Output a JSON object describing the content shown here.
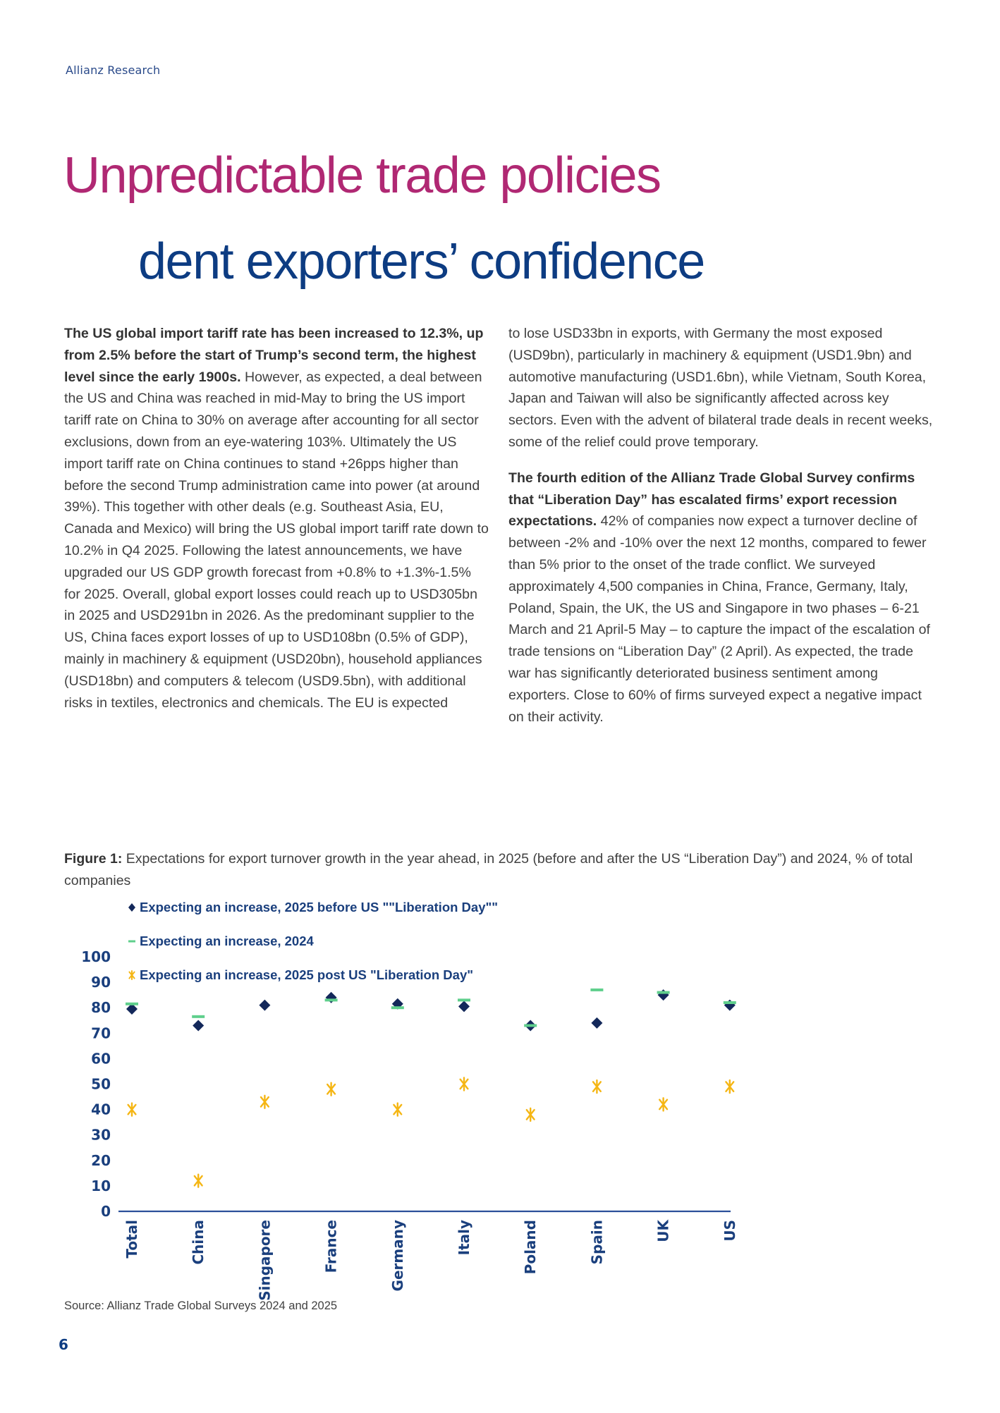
{
  "header": {
    "brand": "Allianz Research"
  },
  "title": {
    "line1": "Unpredictable trade policies",
    "line2": "dent exporters’ confidence"
  },
  "body": {
    "left_paragraph_bold": "The US global import tariff rate has been increased to 12.3%, up from 2.5% before the start of Trump’s second term, the highest level since the early 1900s.",
    "left_paragraph_rest": " However, as expected, a deal between the US and China was reached in mid-May to bring the US import tariff rate on China to 30% on average after accounting for all sector exclusions, down from an eye-watering 103%. Ultimately the US import tariff rate on China continues to stand +26pps higher than before the second Trump administration came into power (at around 39%). This together with other deals (e.g. Southeast Asia, EU, Canada and Mexico) will bring the US global import tariff rate down to 10.2% in Q4 2025. Following the latest announcements, we have upgraded our US GDP growth forecast from +0.8% to +1.3%-1.5% for 2025. Overall, global export losses could reach up to USD305bn in 2025 and USD291bn in 2026. As the predominant supplier to the US, China faces export losses of up to USD108bn (0.5% of GDP), mainly in machinery & equipment (USD20bn), household appliances (USD18bn) and computers & telecom (USD9.5bn), with additional risks in textiles, electronics and chemicals. The EU is expected",
    "right_paragraph1": "to lose USD33bn in exports, with Germany the most exposed (USD9bn), particularly in machinery & equipment (USD1.9bn) and automotive manufacturing (USD1.6bn), while Vietnam, South Korea, Japan and Taiwan will also be significantly affected across key sectors. Even with the advent of bilateral trade deals in recent weeks, some of the relief could prove temporary.",
    "right_paragraph2_bold": "The fourth edition of the Allianz Trade Global Survey confirms that “Liberation Day” has escalated firms’ export recession expectations.",
    "right_paragraph2_rest": " 42% of companies now expect a turnover decline of between -2% and -10% over the next 12 months, compared to fewer than 5% prior to the onset of the trade conflict. We surveyed approximately 4,500 companies in China, France, Germany, Italy, Poland, Spain, the UK, the US and Singapore in two phases – 6-21 March and 21 April-5 May – to capture the impact of the escalation of trade tensions on “Liberation Day” (2 April). As expected, the trade war has significantly deteriorated business sentiment among exporters. Close to 60% of firms surveyed expect a negative impact on their activity."
  },
  "figure": {
    "label": "Figure 1:",
    "caption": " Expectations for export turnover growth in the year ahead, in 2025 (before and after the US “Liberation Day”) and 2024, % of total companies",
    "source": "Source: Allianz Trade Global Surveys 2024 and 2025"
  },
  "page_number": "6",
  "colors": {
    "title_magenta": "#b02873",
    "title_blue": "#0d3c82",
    "diamond": "#13285a",
    "dash": "#5fcf8c",
    "star": "#f5b614",
    "axis": "#2a4f9a"
  },
  "chart_data": {
    "type": "scatter",
    "title": "Expectations for export turnover growth in the year ahead, in 2025 (before and after the US “Liberation Day”) and 2024, % of total companies",
    "xlabel": "",
    "ylabel": "",
    "ylim": [
      0,
      100
    ],
    "yticks": [
      "0",
      "10",
      "20",
      "30",
      "40",
      "50",
      "60",
      "70",
      "80",
      "90",
      "100"
    ],
    "grid": false,
    "legend_position": "top-left",
    "categories": [
      "Total",
      "China",
      "Singapore",
      "France",
      "Germany",
      "Italy",
      "Poland",
      "Spain",
      "UK",
      "US"
    ],
    "series": [
      {
        "name": "Expecting an increase, 2025 before US \"\"Liberation Day\"\"",
        "marker": "diamond",
        "values": [
          79.5,
          73,
          81,
          84,
          81.5,
          80.5,
          73,
          74,
          85,
          81
        ]
      },
      {
        "name": "Expecting an increase, 2024",
        "marker": "dash",
        "values": [
          81.5,
          76.5,
          null,
          83,
          80,
          83,
          73,
          87,
          86,
          82
        ]
      },
      {
        "name": "Expecting an increase, 2025 post US \"Liberation Day\"",
        "marker": "star",
        "values": [
          40,
          12,
          43,
          48,
          40,
          50,
          38,
          49,
          42,
          49
        ]
      }
    ]
  }
}
